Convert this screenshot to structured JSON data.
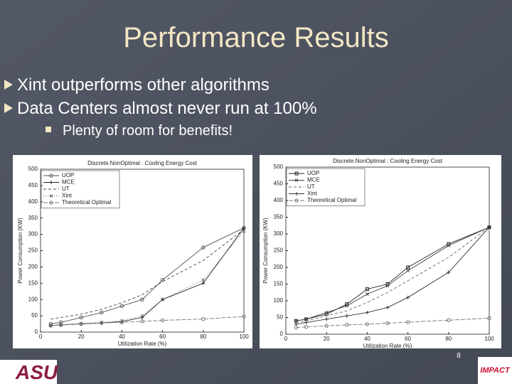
{
  "slide": {
    "title": "Performance Results",
    "bullets": [
      "Xint outperforms other algorithms",
      "Data Centers almost never run at 100%"
    ],
    "sub_bullets": [
      "Plenty of room for benefits!"
    ],
    "page_number": "8",
    "logo_left": "ASU",
    "logo_right": "IMPACT"
  },
  "chart_data": [
    {
      "type": "line",
      "title": "Discrete.NonOptimal : Cooling Energy Cost",
      "x_label": "Utilization Rate (%)",
      "y_label": "Power Consumption (KW)",
      "x": [
        5,
        10,
        20,
        30,
        40,
        50,
        60,
        80,
        100
      ],
      "xlim": [
        0,
        100
      ],
      "xticks": [
        0,
        20,
        40,
        60,
        80,
        100
      ],
      "ylim": [
        0,
        500
      ],
      "yticks": [
        0,
        50,
        100,
        150,
        200,
        250,
        300,
        350,
        400,
        450,
        500
      ],
      "grid": false,
      "legend": "upper left",
      "series": [
        {
          "name": "UOP",
          "color": "#555555",
          "dash": "none",
          "marker": "circle",
          "values": [
            25,
            30,
            45,
            60,
            80,
            100,
            160,
            260,
            320
          ]
        },
        {
          "name": "MCE",
          "color": "#222222",
          "dash": "none",
          "marker": "plus",
          "values": [
            20,
            22,
            25,
            28,
            32,
            45,
            100,
            150,
            320
          ]
        },
        {
          "name": "UT",
          "color": "#444444",
          "dash": "4,3",
          "marker": "none",
          "values": [
            40,
            45,
            55,
            70,
            90,
            115,
            155,
            220,
            315
          ]
        },
        {
          "name": "Xint",
          "color": "#666666",
          "dash": "1,2",
          "marker": "x",
          "values": [
            20,
            22,
            27,
            30,
            35,
            50,
            100,
            160,
            310
          ]
        },
        {
          "name": "Theoretical Optimal",
          "color": "#777777",
          "dash": "6,2",
          "marker": "circle",
          "values": [
            20,
            22,
            25,
            28,
            30,
            33,
            36,
            40,
            48
          ]
        }
      ]
    },
    {
      "type": "line",
      "title": "Discrete.NonOptimal : Cooling Energy Cost",
      "x_label": "Utilization Rate (%)",
      "y_label": "Power Consumption (KW)",
      "x": [
        5,
        10,
        20,
        30,
        40,
        50,
        60,
        80,
        100
      ],
      "xlim": [
        0,
        100
      ],
      "xticks": [
        0,
        20,
        40,
        60,
        80,
        100
      ],
      "ylim": [
        0,
        500
      ],
      "yticks": [
        0,
        50,
        100,
        150,
        200,
        250,
        300,
        350,
        400,
        450,
        500
      ],
      "grid": false,
      "legend": "upper left",
      "series": [
        {
          "name": "UOP",
          "color": "#222222",
          "dash": "none",
          "marker": "square",
          "values": [
            40,
            45,
            60,
            90,
            135,
            150,
            200,
            270,
            320
          ]
        },
        {
          "name": "MCE",
          "color": "#444444",
          "dash": "none",
          "marker": "x",
          "values": [
            40,
            45,
            65,
            85,
            120,
            145,
            190,
            265,
            320
          ]
        },
        {
          "name": "UT",
          "color": "#666666",
          "dash": "4,3",
          "marker": "none",
          "values": [
            35,
            40,
            55,
            70,
            95,
            125,
            160,
            230,
            320
          ]
        },
        {
          "name": "Xint",
          "color": "#333333",
          "dash": "none",
          "marker": "plus",
          "values": [
            30,
            35,
            45,
            55,
            65,
            80,
            110,
            185,
            320
          ]
        },
        {
          "name": "Theoretical Optimal",
          "color": "#777777",
          "dash": "6,2",
          "marker": "circle",
          "values": [
            20,
            22,
            25,
            28,
            30,
            33,
            36,
            42,
            48
          ]
        }
      ]
    }
  ]
}
